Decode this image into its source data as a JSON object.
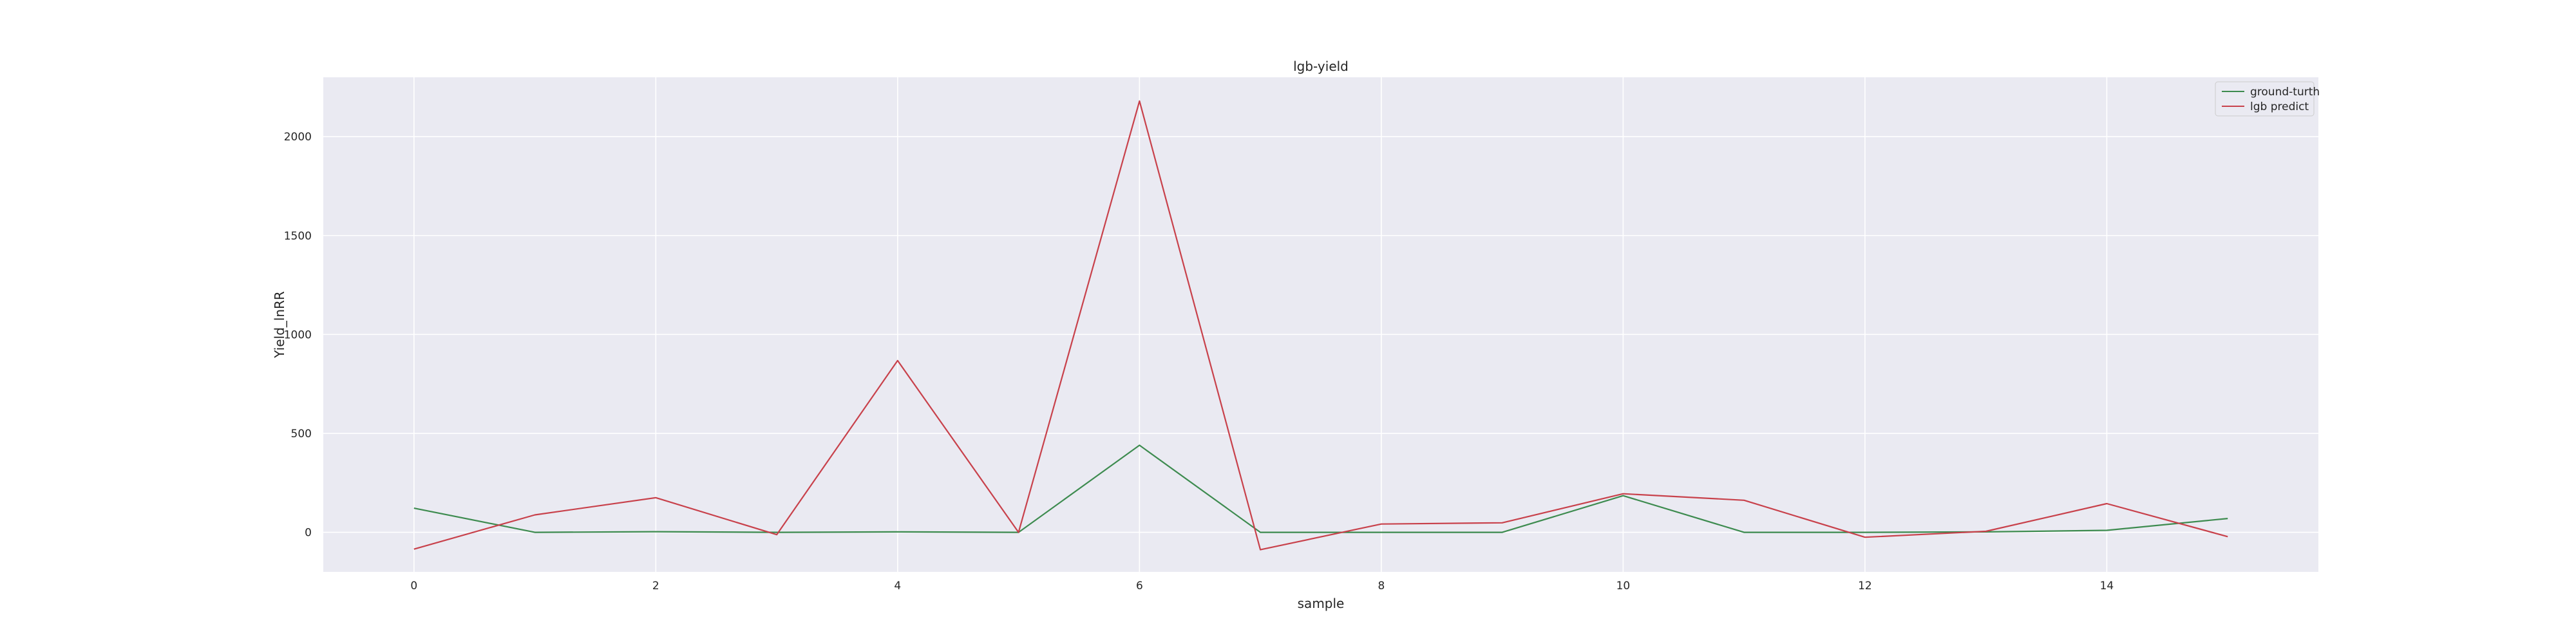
{
  "chart_data": {
    "type": "line",
    "title": "lgb-yield",
    "xlabel": "sample",
    "ylabel": "Yield_lnRR",
    "x": [
      0,
      1,
      2,
      3,
      4,
      5,
      6,
      7,
      8,
      9,
      10,
      11,
      12,
      13,
      14,
      15
    ],
    "xlim": [
      -0.75,
      15.75
    ],
    "ylim": [
      -200,
      2300
    ],
    "xticks": [
      0,
      2,
      4,
      6,
      8,
      10,
      12,
      14
    ],
    "yticks": [
      0,
      500,
      1000,
      1500,
      2000
    ],
    "grid": true,
    "legend_position": "top-right",
    "series": [
      {
        "name": "ground-turth",
        "color": "#3d8b4f",
        "values": [
          122,
          0,
          3,
          0,
          2,
          0,
          440,
          0,
          0,
          0,
          185,
          0,
          0,
          2,
          10,
          70
        ]
      },
      {
        "name": "lgb predict",
        "color": "#c8414b",
        "values": [
          -85,
          88,
          175,
          -12,
          868,
          0,
          2180,
          -88,
          42,
          48,
          195,
          162,
          -25,
          5,
          145,
          -22
        ]
      }
    ]
  }
}
